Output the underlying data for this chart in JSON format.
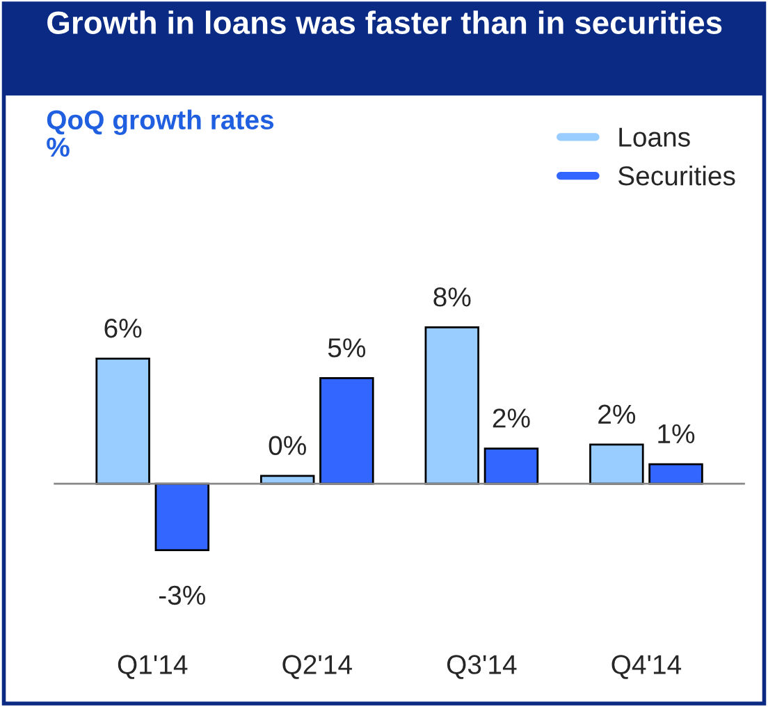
{
  "chart_data": {
    "type": "bar",
    "title": "Growth in loans was faster than in securities",
    "subtitle": "QoQ growth rates\n%",
    "categories": [
      "Q1'14",
      "Q2'14",
      "Q3'14",
      "Q4'14"
    ],
    "series": [
      {
        "name": "Loans",
        "color": "#99ccff",
        "values": [
          6.4,
          0.4,
          8.0,
          2.0
        ],
        "value_labels": [
          "6%",
          "0%",
          "8%",
          "2%"
        ]
      },
      {
        "name": "Securities",
        "color": "#3366ff",
        "values": [
          -3.4,
          5.4,
          1.8,
          1.0
        ],
        "value_labels": [
          "-3%",
          "5%",
          "2%",
          "1%"
        ]
      }
    ],
    "legend": "top right",
    "grid": false
  }
}
